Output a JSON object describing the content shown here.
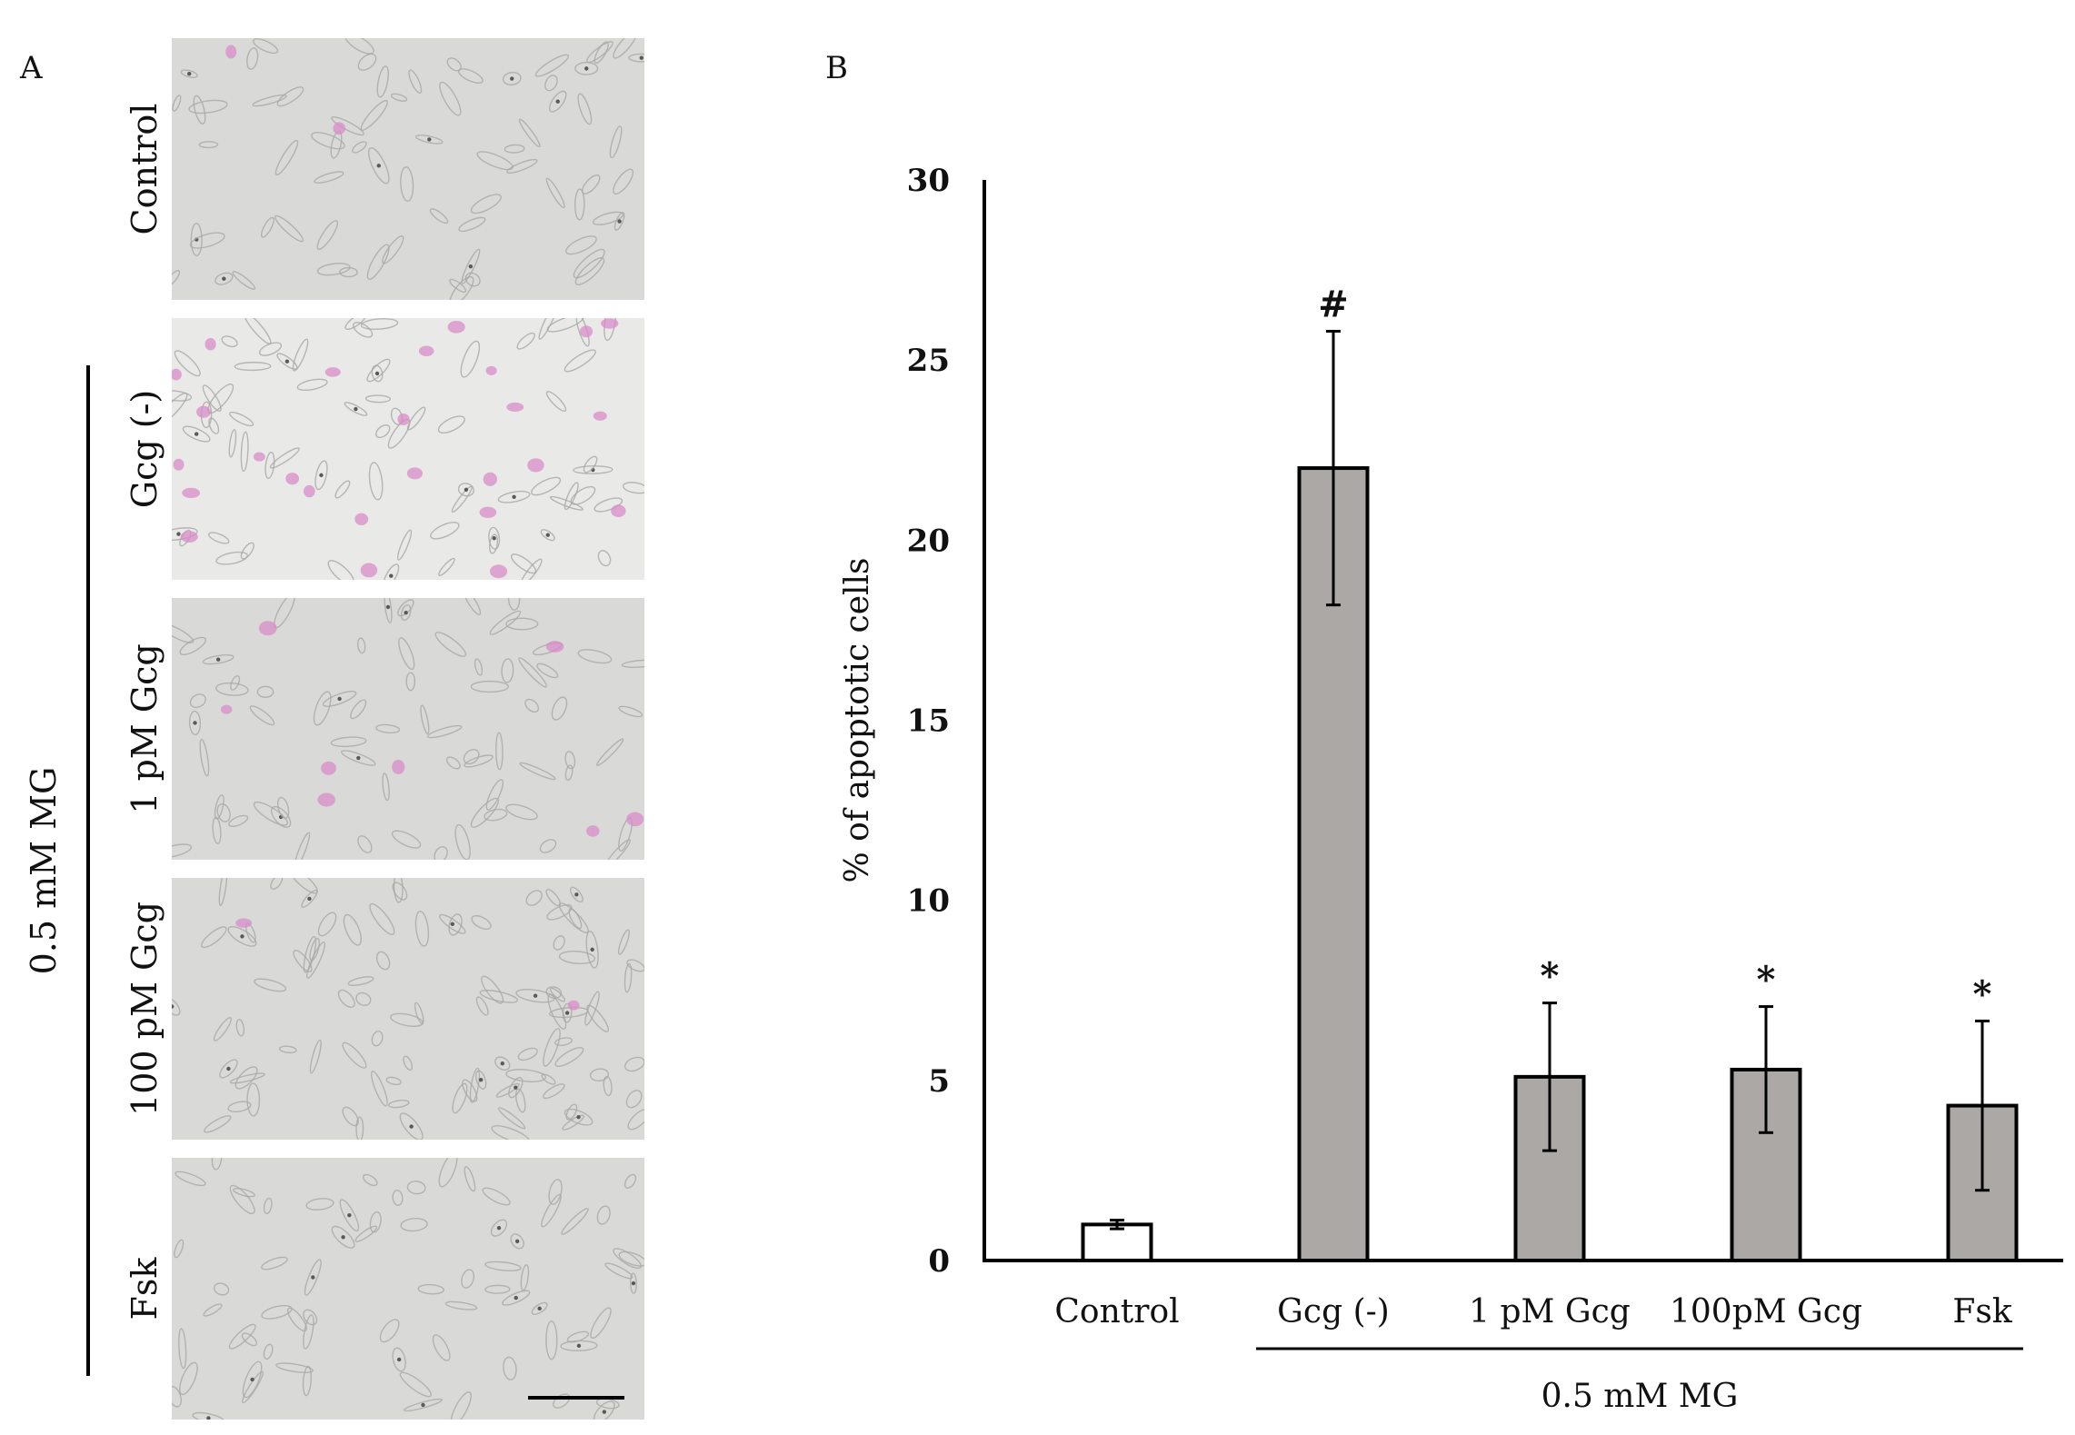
{
  "panel_a": {
    "label": "A",
    "group_label": "0.5 mM MG",
    "rows": [
      {
        "label": "Control",
        "magenta_cells": 2
      },
      {
        "label": "Gcg (-)",
        "magenta_cells": 26
      },
      {
        "label": "1 pM Gcg",
        "magenta_cells": 8
      },
      {
        "label": "100 pM Gcg",
        "magenta_cells": 2
      },
      {
        "label": "Fsk",
        "magenta_cells": 0
      }
    ]
  },
  "panel_b": {
    "label": "B"
  },
  "chart_data": {
    "type": "bar",
    "title": "",
    "ylabel": "% of apoptotic cells",
    "xlabel": "",
    "ylim": [
      0,
      30
    ],
    "yticks": [
      "0",
      "5",
      "10",
      "15",
      "20",
      "25",
      "30"
    ],
    "categories": [
      "Control",
      "Gcg (-)",
      "1 pM Gcg",
      "100pM Gcg",
      "Fsk"
    ],
    "values": [
      1.0,
      22.0,
      5.1,
      5.3,
      4.3
    ],
    "errors": [
      0.12,
      3.8,
      2.05,
      1.75,
      2.35
    ],
    "significance": [
      "",
      "#",
      "*",
      "*",
      "*"
    ],
    "bar_colors": [
      "#ffffff",
      "#aba8a6",
      "#aba8a6",
      "#aba8a6",
      "#aba8a6"
    ],
    "group": {
      "label": "0.5 mM MG",
      "from_category": 1,
      "to_category": 4
    }
  }
}
